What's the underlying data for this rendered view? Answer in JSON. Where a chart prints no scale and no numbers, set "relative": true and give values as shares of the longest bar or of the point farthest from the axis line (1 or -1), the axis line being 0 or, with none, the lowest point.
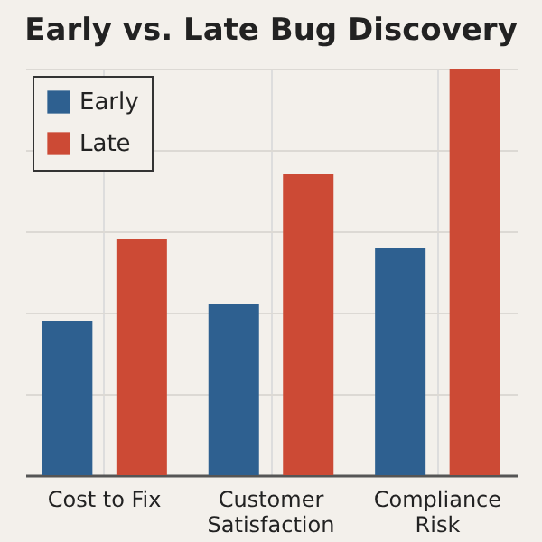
{
  "chart_data": {
    "type": "bar",
    "title": "Early vs. Late Bug Discovery",
    "categories": [
      "Cost to Fix",
      "Customer Satisfaction",
      "Compliance Risk"
    ],
    "relative": true,
    "grid": true,
    "legend": "top left",
    "series": [
      {
        "name": "Early",
        "color": "#2e6090",
        "values": [
          0.38,
          0.42,
          0.56
        ]
      },
      {
        "name": "Late",
        "color": "#cc4a35",
        "values": [
          0.58,
          0.74,
          1
        ]
      }
    ]
  }
}
